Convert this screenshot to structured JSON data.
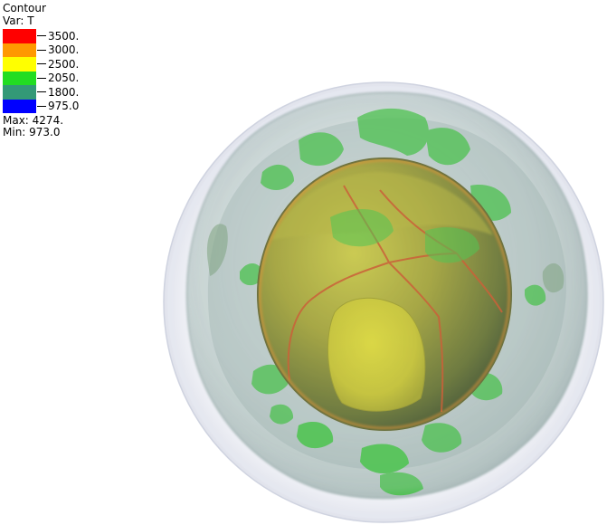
{
  "legend": {
    "title": "Contour",
    "var": "Var: T",
    "entries": [
      {
        "label": "3500.",
        "color": "#ff0000"
      },
      {
        "label": "3000.",
        "color": "#ff9900"
      },
      {
        "label": "2500.",
        "color": "#ffff00"
      },
      {
        "label": "2050.",
        "color": "#22dd22"
      },
      {
        "label": "1800.",
        "color": "#339977"
      },
      {
        "label": "975.0",
        "color": "#0000ff"
      }
    ],
    "max": "Max:  4274.",
    "min": "Min:  973.0"
  },
  "scene": {
    "outer_shell_color": "#e4e6f0",
    "mid_shell_color": "#8fa7a2",
    "green_front_color": "#2fbd2f",
    "core_color": "#9c9a2a",
    "core_highlight_color": "#d6cf22",
    "hot_line_color": "#d24a1a"
  }
}
